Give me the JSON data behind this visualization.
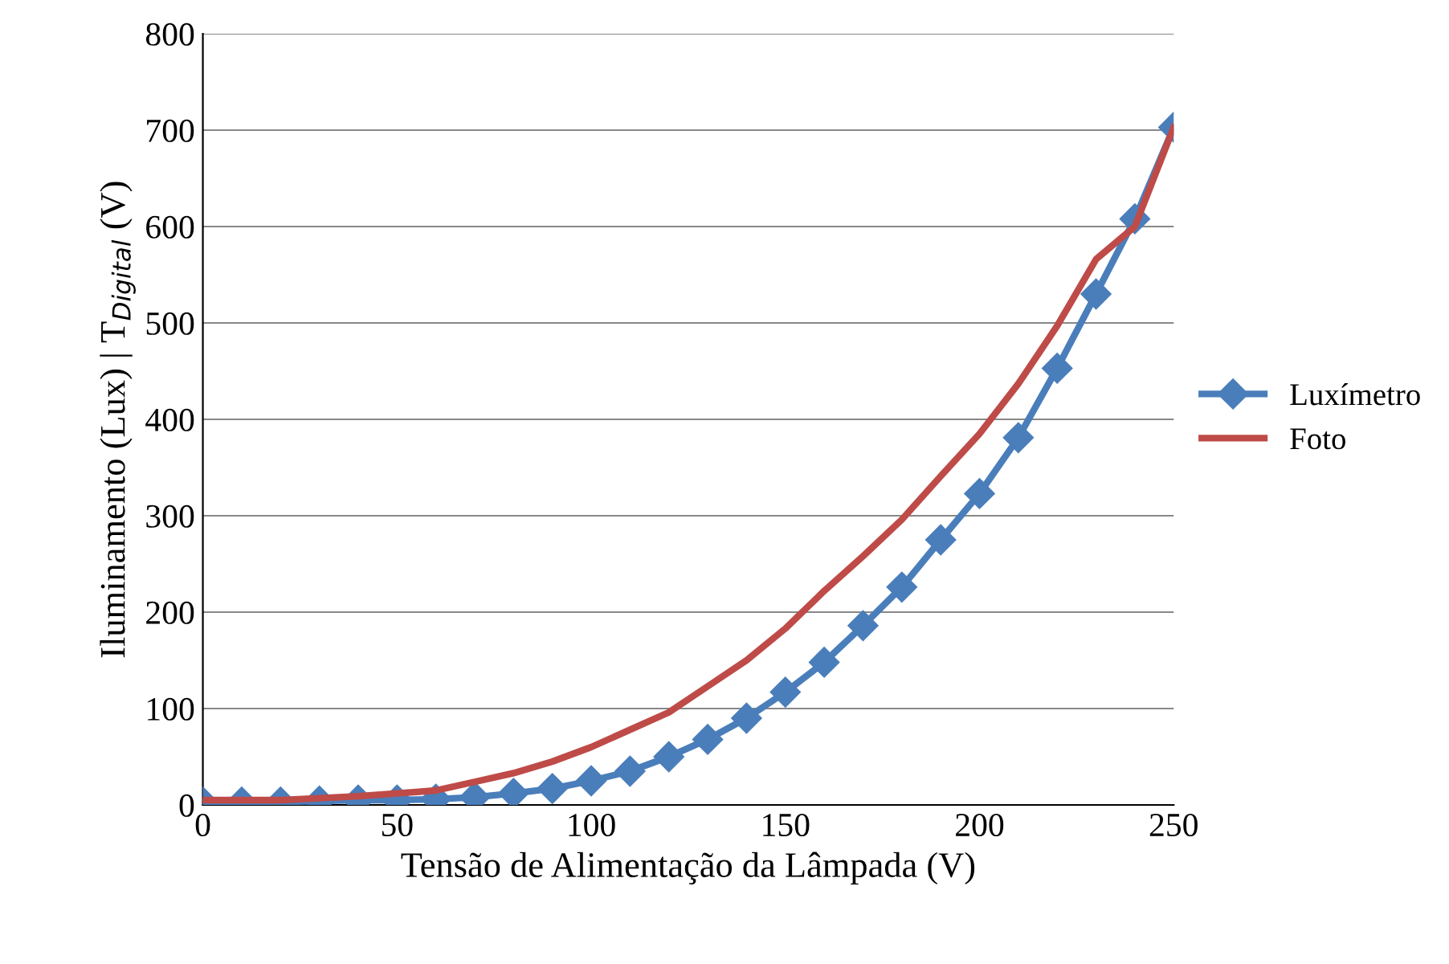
{
  "chart_data": {
    "type": "line",
    "xlabel": "Tensão de Alimentação da Lâmpada (V)",
    "ylabel": "Iluminamento (Lux) | T$_{Digital}$ (V)",
    "x": [
      0,
      10,
      20,
      30,
      40,
      50,
      60,
      70,
      80,
      90,
      100,
      110,
      120,
      130,
      140,
      150,
      160,
      170,
      180,
      190,
      200,
      210,
      220,
      230,
      240,
      250
    ],
    "series": [
      {
        "name": "Luxímetro",
        "color": "#4a7ebb",
        "marker": "diamond",
        "values": [
          3,
          3,
          3,
          4,
          5,
          5,
          6,
          8,
          12,
          17,
          25,
          35,
          50,
          68,
          90,
          117,
          148,
          186,
          226,
          275,
          323,
          381,
          453,
          530,
          608,
          703
        ]
      },
      {
        "name": "Foto",
        "color": "#be4b48",
        "marker": "none",
        "values": [
          5,
          5,
          5,
          7,
          9,
          12,
          15,
          24,
          33,
          45,
          60,
          78,
          96,
          123,
          150,
          183,
          222,
          258,
          296,
          341,
          385,
          437,
          497,
          566,
          600,
          703
        ]
      }
    ],
    "xlim": [
      0,
      250
    ],
    "xticks": [
      0,
      50,
      100,
      150,
      200,
      250
    ],
    "ylim": [
      0,
      800
    ],
    "yticks": [
      0,
      100,
      200,
      300,
      400,
      500,
      600,
      700,
      800
    ],
    "grid": "y",
    "legend": "right",
    "line_style": "solid"
  }
}
